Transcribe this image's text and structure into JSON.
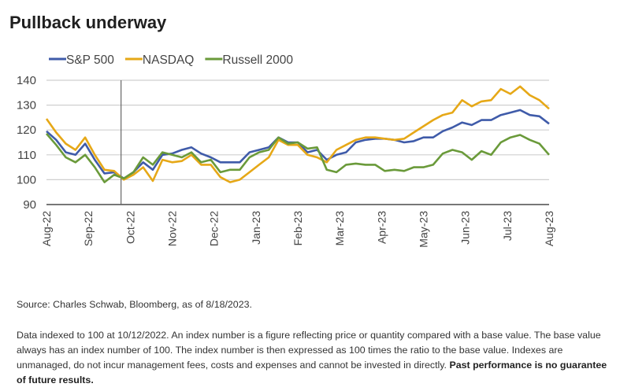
{
  "title": "Pullback underway",
  "chart_data": {
    "type": "line",
    "title": "Pullback underway",
    "xlabel": "",
    "ylabel": "",
    "ylim": [
      90,
      140
    ],
    "yticks": [
      90,
      100,
      110,
      120,
      130,
      140
    ],
    "xlim": [
      "2022-08-19",
      "2023-08-18"
    ],
    "xticks": [
      "Aug-22",
      "Sep-22",
      "Oct-22",
      "Nov-22",
      "Dec-22",
      "Jan-23",
      "Feb-23",
      "Mar-23",
      "Apr-23",
      "May-23",
      "Jun-23",
      "Jul-23",
      "Aug-23"
    ],
    "grid": "horizontal",
    "legend": "top-left",
    "marker_date": "2022-10-12",
    "x": [
      "2022-08-19",
      "2022-08-26",
      "2022-09-02",
      "2022-09-09",
      "2022-09-16",
      "2022-09-23",
      "2022-09-30",
      "2022-10-07",
      "2022-10-14",
      "2022-10-21",
      "2022-10-28",
      "2022-11-04",
      "2022-11-11",
      "2022-11-18",
      "2022-11-25",
      "2022-12-02",
      "2022-12-09",
      "2022-12-16",
      "2022-12-23",
      "2022-12-30",
      "2023-01-06",
      "2023-01-13",
      "2023-01-20",
      "2023-01-27",
      "2023-02-03",
      "2023-02-10",
      "2023-02-17",
      "2023-02-24",
      "2023-03-03",
      "2023-03-10",
      "2023-03-17",
      "2023-03-24",
      "2023-03-31",
      "2023-04-07",
      "2023-04-14",
      "2023-04-21",
      "2023-04-28",
      "2023-05-05",
      "2023-05-12",
      "2023-05-19",
      "2023-05-26",
      "2023-06-02",
      "2023-06-09",
      "2023-06-16",
      "2023-06-23",
      "2023-06-30",
      "2023-07-07",
      "2023-07-14",
      "2023-07-21",
      "2023-07-28",
      "2023-08-04",
      "2023-08-11",
      "2023-08-18"
    ],
    "series": [
      {
        "name": "S&P 500",
        "color": "#3f5ba9",
        "values": [
          119.5,
          116,
          111,
          110,
          114.5,
          108,
          102.5,
          103,
          100.5,
          103,
          107,
          104,
          110,
          110.5,
          112,
          113,
          110.5,
          109,
          107,
          107,
          107,
          111,
          112,
          113,
          117,
          115,
          115,
          111,
          112,
          108,
          110,
          111,
          115,
          116,
          116.5,
          116.5,
          116,
          115,
          115.5,
          117,
          117,
          119.5,
          121,
          123,
          122,
          124,
          124,
          126,
          127,
          128,
          126,
          125.5,
          122.5
        ]
      },
      {
        "name": "NASDAQ",
        "color": "#e6a817",
        "values": [
          124.5,
          119,
          114.5,
          112,
          117,
          110,
          104,
          103.5,
          100,
          102,
          105,
          99.5,
          108,
          107,
          107.5,
          110,
          106,
          106,
          101,
          99,
          100,
          103,
          106,
          109,
          116,
          114,
          114,
          110,
          109,
          107,
          112,
          114,
          116,
          117,
          117,
          116.5,
          116,
          116.5,
          119,
          121.5,
          124,
          126,
          127,
          132,
          129.5,
          131.5,
          132,
          136.5,
          134.5,
          137.5,
          134,
          132,
          128.5
        ]
      },
      {
        "name": "Russell 2000",
        "color": "#6a9a3a",
        "values": [
          118.5,
          114,
          109,
          107,
          110,
          105,
          99,
          102,
          100.5,
          103,
          109,
          106,
          111,
          110,
          109,
          111,
          107,
          108,
          103,
          104,
          104,
          109,
          111,
          112,
          117,
          114.5,
          115,
          112.5,
          113,
          104,
          103,
          106,
          106.5,
          106,
          106,
          103.5,
          104,
          103.5,
          105,
          105,
          106,
          110.5,
          112,
          111,
          108,
          111.5,
          110,
          115,
          117,
          118,
          116,
          114.5,
          110
        ]
      }
    ]
  },
  "source": "Source: Charles Schwab, Bloomberg, as of 8/18/2023.",
  "footnote": "Data indexed to 100 at 10/12/2022. An index number is a figure reflecting price or quantity compared with a base value. The base value always has an index number of 100. The index number is then expressed as 100 times the ratio to the base value. Indexes are unmanaged, do not incur management fees, costs and expenses and cannot be invested in directly.",
  "footnote_bold": "Past performance is no guarantee of future results."
}
